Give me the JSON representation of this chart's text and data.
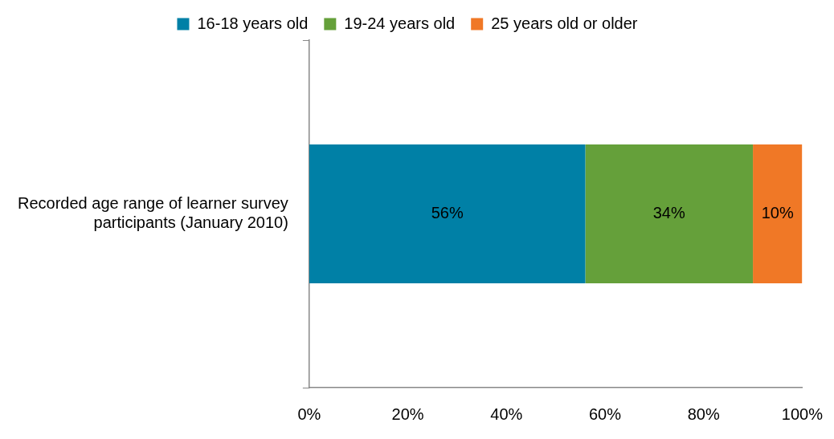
{
  "chart_data": {
    "type": "bar",
    "orientation": "horizontal",
    "stacked": true,
    "categories": [
      "Recorded age range of learner survey participants (January 2010)"
    ],
    "series": [
      {
        "name": "16-18 years old",
        "color": "#0080a6",
        "values": [
          56
        ],
        "value_labels": [
          "56%"
        ]
      },
      {
        "name": "19-24 years old",
        "color": "#65a03a",
        "values": [
          34
        ],
        "value_labels": [
          "34%"
        ]
      },
      {
        "name": "25 years old or older",
        "color": "#f07826",
        "values": [
          10
        ],
        "value_labels": [
          "10%"
        ]
      }
    ],
    "xlim": [
      0,
      100
    ],
    "xticks": [
      {
        "value": 0,
        "label": "0%"
      },
      {
        "value": 20,
        "label": "20%"
      },
      {
        "value": 40,
        "label": "40%"
      },
      {
        "value": 60,
        "label": "60%"
      },
      {
        "value": 80,
        "label": "80%"
      },
      {
        "value": 100,
        "label": "100%"
      }
    ],
    "grid": false,
    "legend": "top"
  }
}
